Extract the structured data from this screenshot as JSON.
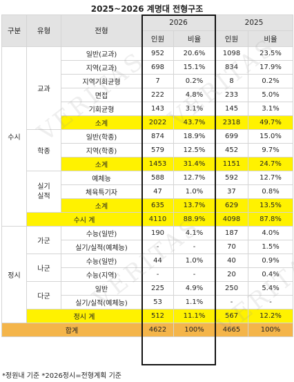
{
  "title": "2025~2026 계명대 전형구조",
  "header": {
    "gubun": "구분",
    "yuhyeong": "유형",
    "jeonhyeong": "전형",
    "year_2026": "2026",
    "year_2025": "2025",
    "count": "인원",
    "ratio": "비율"
  },
  "groups": {
    "susi": "수시",
    "jeongsi": "정시",
    "gyogwa": "교과",
    "hakjong": "학종",
    "silgi": "실기\n실적",
    "ga": "가군",
    "na": "나군",
    "da": "다군"
  },
  "rows": [
    {
      "name": "일반(교과)",
      "c26": "952",
      "r26": "20.6%",
      "c25": "1098",
      "r25": "23.5%"
    },
    {
      "name": "지역(교과)",
      "c26": "698",
      "r26": "15.1%",
      "c25": "834",
      "r25": "17.9%"
    },
    {
      "name": "지역기회균형",
      "c26": "7",
      "r26": "0.2%",
      "c25": "8",
      "r25": "0.2%"
    },
    {
      "name": "면접",
      "c26": "222",
      "r26": "4.8%",
      "c25": "233",
      "r25": "5.0%"
    },
    {
      "name": "기회균형",
      "c26": "143",
      "r26": "3.1%",
      "c25": "145",
      "r25": "3.1%"
    },
    {
      "name": "소계",
      "c26": "2022",
      "r26": "43.7%",
      "c25": "2318",
      "r25": "49.7%"
    },
    {
      "name": "일반(학종)",
      "c26": "874",
      "r26": "18.9%",
      "c25": "699",
      "r25": "15.0%"
    },
    {
      "name": "지역(학종)",
      "c26": "579",
      "r26": "12.5%",
      "c25": "452",
      "r25": "9.7%"
    },
    {
      "name": "소계",
      "c26": "1453",
      "r26": "31.4%",
      "c25": "1151",
      "r25": "24.7%"
    },
    {
      "name": "예체능",
      "c26": "588",
      "r26": "12.7%",
      "c25": "592",
      "r25": "12.7%"
    },
    {
      "name": "체육특기자",
      "c26": "47",
      "r26": "1.0%",
      "c25": "37",
      "r25": "0.8%"
    },
    {
      "name": "소계",
      "c26": "635",
      "r26": "13.7%",
      "c25": "629",
      "r25": "13.5%"
    },
    {
      "name": "수시 계",
      "c26": "4110",
      "r26": "88.9%",
      "c25": "4098",
      "r25": "87.8%"
    },
    {
      "name": "수능(일반)",
      "c26": "190",
      "r26": "4.1%",
      "c25": "187",
      "r25": "4.0%"
    },
    {
      "name": "실기/실적(예체능)",
      "c26": "-",
      "r26": "-",
      "c25": "70",
      "r25": "1.5%"
    },
    {
      "name": "수능(일반)",
      "c26": "44",
      "r26": "1.0%",
      "c25": "40",
      "r25": "0.9%"
    },
    {
      "name": "수능(지역)",
      "c26": "-",
      "r26": "-",
      "c25": "20",
      "r25": "0.4%"
    },
    {
      "name": "일반",
      "c26": "225",
      "r26": "4.9%",
      "c25": "250",
      "r25": "5.4%"
    },
    {
      "name": "실기/실적(예체능)",
      "c26": "53",
      "r26": "1.1%",
      "c25": "-",
      "r25": "-"
    },
    {
      "name": "정시 계",
      "c26": "512",
      "r26": "11.1%",
      "c25": "567",
      "r25": "12.2%"
    },
    {
      "name": "합계",
      "c26": "4622",
      "r26": "100%",
      "c25": "4665",
      "r25": "100%"
    }
  ],
  "footnote": "*정원내 기준 *2026정시=전형계획 기준",
  "watermark": "VERITAS"
}
